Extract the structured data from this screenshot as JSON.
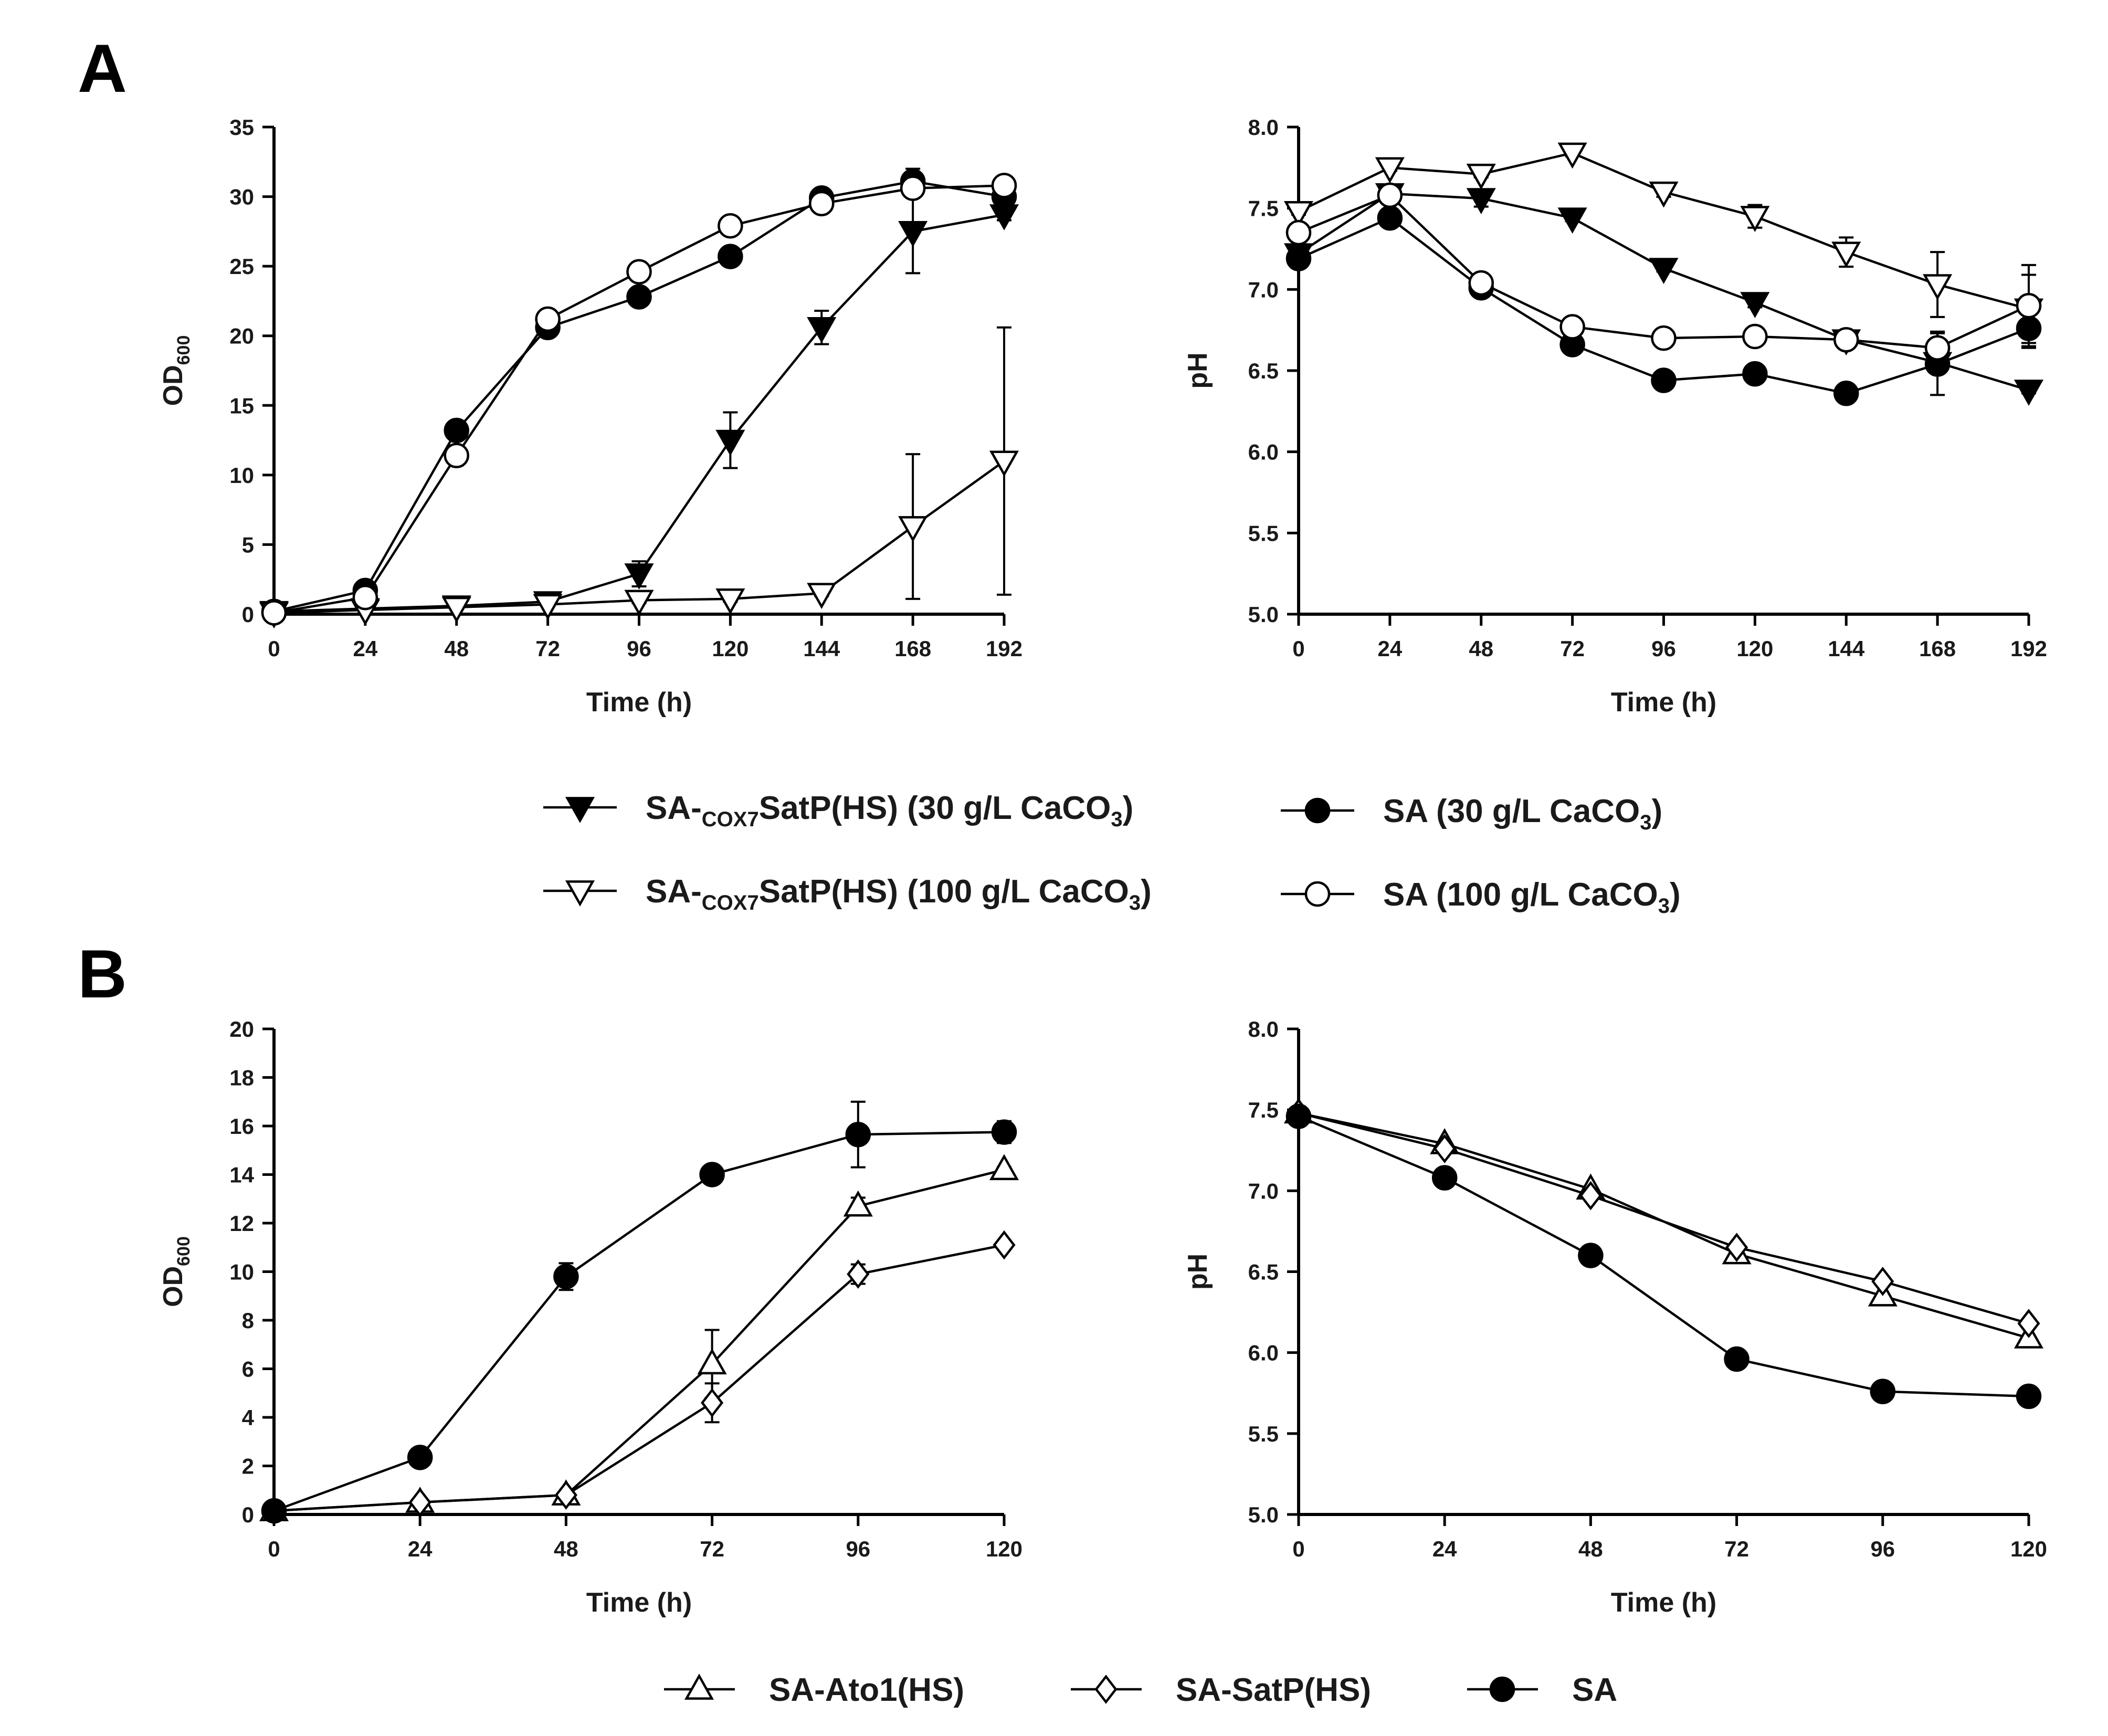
{
  "panel_labels": [
    "A",
    "B"
  ],
  "legend_a": [
    {
      "prefix": "SA-",
      "sub": "COX7",
      "main": "SatP(HS) (30 g/L CaCO",
      "sub2": "3",
      "tail": ")",
      "marker": "triangle-down",
      "fill": "#000000"
    },
    {
      "prefix": "SA-",
      "sub": "COX7",
      "main": "SatP(HS) (100 g/L CaCO",
      "sub2": "3",
      "tail": ")",
      "marker": "triangle-down",
      "fill": "#ffffff"
    },
    {
      "prefix": "",
      "sub": "",
      "main": "SA (30 g/L CaCO",
      "sub2": "3",
      "tail": ")",
      "marker": "circle",
      "fill": "#000000"
    },
    {
      "prefix": "",
      "sub": "",
      "main": "SA (100 g/L CaCO",
      "sub2": "3",
      "tail": ")",
      "marker": "circle",
      "fill": "#ffffff"
    }
  ],
  "legend_b": [
    {
      "label": "SA-Ato1(HS)",
      "marker": "triangle-up",
      "fill": "#ffffff"
    },
    {
      "label": "SA-SatP(HS)",
      "marker": "diamond",
      "fill": "#ffffff"
    },
    {
      "label": "SA",
      "marker": "circle",
      "fill": "#000000"
    }
  ],
  "chart_data": [
    {
      "id": "A-OD",
      "type": "line",
      "xlabel": "Time (h)",
      "ylabel_main": "OD",
      "ylabel_sub": "600",
      "xlim": [
        0,
        192
      ],
      "ylim": [
        0,
        35
      ],
      "xticks": [
        0,
        24,
        48,
        72,
        96,
        120,
        144,
        168,
        192
      ],
      "yticks": [
        0,
        5,
        10,
        15,
        20,
        25,
        30,
        35
      ],
      "ytick_labels": [
        "0",
        "5",
        "10",
        "15",
        "20",
        "25",
        "30",
        "35"
      ],
      "x": [
        0,
        24,
        48,
        72,
        96,
        120,
        144,
        168,
        192
      ],
      "series": [
        {
          "name": "SA-COX7SatP(HS) (30 g/L CaCO3)",
          "marker": "triangle-down",
          "fill": "#000000",
          "values": [
            0.2,
            0.4,
            0.6,
            0.9,
            2.9,
            12.5,
            20.6,
            27.5,
            28.7
          ],
          "errors": [
            0.1,
            0.1,
            0.1,
            0.2,
            0.9,
            2.0,
            1.2,
            3.0,
            0.4
          ]
        },
        {
          "name": "SA-COX7SatP(HS) (100 g/L CaCO3)",
          "marker": "triangle-down",
          "fill": "#ffffff",
          "values": [
            0.1,
            0.3,
            0.5,
            0.7,
            1.0,
            1.1,
            1.5,
            6.3,
            11.0
          ],
          "errors": [
            0.05,
            0.05,
            0.1,
            0.1,
            0.2,
            0.2,
            0.2,
            5.2,
            9.6
          ]
        },
        {
          "name": "SA (30 g/L CaCO3)",
          "marker": "circle",
          "fill": "#000000",
          "values": [
            0.2,
            1.7,
            13.2,
            20.6,
            22.8,
            25.7,
            29.9,
            31.1,
            30.0
          ],
          "errors": [
            0.1,
            0.2,
            0.4,
            0.3,
            0.3,
            0.3,
            0.3,
            0.9,
            0.5
          ]
        },
        {
          "name": "SA (100 g/L CaCO3)",
          "marker": "circle",
          "fill": "#ffffff",
          "values": [
            0.1,
            1.2,
            11.4,
            21.2,
            24.6,
            27.9,
            29.5,
            30.6,
            30.8
          ],
          "errors": [
            0.1,
            0.3,
            0.7,
            0.3,
            0.7,
            0.3,
            0.3,
            0.4,
            0.4
          ]
        }
      ]
    },
    {
      "id": "A-pH",
      "type": "line",
      "xlabel": "Time (h)",
      "ylabel_main": "pH",
      "ylabel_sub": "",
      "xlim": [
        0,
        192
      ],
      "ylim": [
        5.0,
        8.0
      ],
      "xticks": [
        0,
        24,
        48,
        72,
        96,
        120,
        144,
        168,
        192
      ],
      "yticks": [
        5.0,
        5.5,
        6.0,
        6.5,
        7.0,
        7.5,
        8.0
      ],
      "ytick_labels": [
        "5.0",
        "5.5",
        "6.0",
        "6.5",
        "7.0",
        "7.5",
        "8.0"
      ],
      "x": [
        0,
        24,
        48,
        72,
        96,
        120,
        144,
        168,
        192
      ],
      "series": [
        {
          "name": "SA-COX7SatP(HS) (30 g/L CaCO3)",
          "marker": "triangle-down",
          "fill": "#000000",
          "values": [
            7.22,
            7.59,
            7.56,
            7.44,
            7.13,
            6.92,
            6.69,
            6.55,
            6.38
          ],
          "errors": [
            0.03,
            0.03,
            0.05,
            0.02,
            0.02,
            0.03,
            0.05,
            0.05,
            0.02
          ]
        },
        {
          "name": "SA-COX7SatP(HS) (100 g/L CaCO3)",
          "marker": "triangle-down",
          "fill": "#ffffff",
          "values": [
            7.48,
            7.75,
            7.71,
            7.84,
            7.6,
            7.45,
            7.23,
            7.03,
            6.88
          ],
          "errors": [
            0.02,
            0.02,
            0.02,
            0.02,
            0.03,
            0.07,
            0.09,
            0.2,
            0.21
          ]
        },
        {
          "name": "SA (30 g/L CaCO3)",
          "marker": "circle",
          "fill": "#000000",
          "values": [
            7.19,
            7.44,
            7.01,
            6.66,
            6.44,
            6.48,
            6.36,
            6.54,
            6.76
          ],
          "errors": [
            0.03,
            0.02,
            0.02,
            0.02,
            0.02,
            0.02,
            0.02,
            0.19,
            0.12
          ]
        },
        {
          "name": "SA (100 g/L CaCO3)",
          "marker": "circle",
          "fill": "#ffffff",
          "values": [
            7.35,
            7.58,
            7.04,
            6.77,
            6.7,
            6.71,
            6.69,
            6.64,
            6.9
          ],
          "errors": [
            0.03,
            0.04,
            0.02,
            0.02,
            0.02,
            0.02,
            0.04,
            0.1,
            0.25
          ]
        }
      ]
    },
    {
      "id": "B-OD",
      "type": "line",
      "xlabel": "Time (h)",
      "ylabel_main": "OD",
      "ylabel_sub": "600",
      "xlim": [
        0,
        120
      ],
      "ylim": [
        0,
        20
      ],
      "xticks": [
        0,
        24,
        48,
        72,
        96,
        120
      ],
      "yticks": [
        0,
        2,
        4,
        6,
        8,
        10,
        12,
        14,
        16,
        18,
        20
      ],
      "ytick_labels": [
        "0",
        "2",
        "4",
        "6",
        "8",
        "10",
        "12",
        "14",
        "16",
        "18",
        "20"
      ],
      "x": [
        0,
        24,
        48,
        72,
        96,
        120
      ],
      "series": [
        {
          "name": "SA-Ato1(HS)",
          "marker": "triangle-up",
          "fill": "#ffffff",
          "values": [
            0.15,
            0.5,
            0.8,
            6.2,
            12.7,
            14.2
          ],
          "errors": [
            0.05,
            0.05,
            0.1,
            1.4,
            0.35,
            0.1
          ]
        },
        {
          "name": "SA-SatP(HS)",
          "marker": "diamond",
          "fill": "#ffffff",
          "values": [
            0.15,
            0.5,
            0.8,
            4.6,
            9.9,
            11.1
          ],
          "errors": [
            0.05,
            0.05,
            0.1,
            0.8,
            0.4,
            0.1
          ]
        },
        {
          "name": "SA",
          "marker": "circle",
          "fill": "#000000",
          "values": [
            0.15,
            2.35,
            9.8,
            14.0,
            15.65,
            15.75
          ],
          "errors": [
            0.05,
            0.1,
            0.55,
            0.1,
            1.35,
            0.45
          ]
        }
      ]
    },
    {
      "id": "B-pH",
      "type": "line",
      "xlabel": "Time (h)",
      "ylabel_main": "pH",
      "ylabel_sub": "",
      "xlim": [
        0,
        120
      ],
      "ylim": [
        5.0,
        8.0
      ],
      "xticks": [
        0,
        24,
        48,
        72,
        96,
        120
      ],
      "yticks": [
        5.0,
        5.5,
        6.0,
        6.5,
        7.0,
        7.5,
        8.0
      ],
      "ytick_labels": [
        "5.0",
        "5.5",
        "6.0",
        "6.5",
        "7.0",
        "7.5",
        "8.0"
      ],
      "x": [
        0,
        24,
        48,
        72,
        96,
        120
      ],
      "series": [
        {
          "name": "SA-Ato1(HS)",
          "marker": "triangle-up",
          "fill": "#ffffff",
          "values": [
            7.48,
            7.29,
            7.01,
            6.61,
            6.35,
            6.09
          ],
          "errors": [
            0,
            0,
            0,
            0,
            0,
            0
          ]
        },
        {
          "name": "SA-SatP(HS)",
          "marker": "diamond",
          "fill": "#ffffff",
          "values": [
            7.48,
            7.26,
            6.97,
            6.65,
            6.44,
            6.18
          ],
          "errors": [
            0,
            0,
            0,
            0,
            0,
            0
          ]
        },
        {
          "name": "SA",
          "marker": "circle",
          "fill": "#000000",
          "values": [
            7.46,
            7.08,
            6.6,
            5.96,
            5.76,
            5.73
          ],
          "errors": [
            0,
            0,
            0,
            0,
            0,
            0
          ]
        }
      ]
    }
  ]
}
